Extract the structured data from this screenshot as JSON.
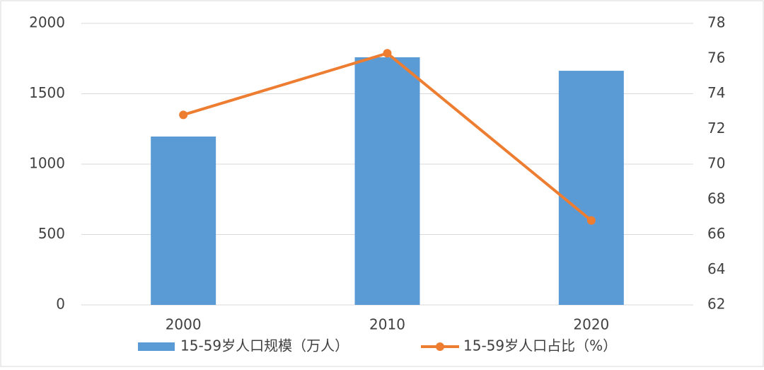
{
  "chart_data": {
    "type": "combo",
    "categories": [
      "2000",
      "2010",
      "2020"
    ],
    "series": [
      {
        "name": "15-59岁人口规模（万人）",
        "type": "bar",
        "color": "#5b9bd5",
        "values": [
          1196,
          1759,
          1663
        ]
      },
      {
        "name": "15-59岁人口占比（%）",
        "type": "line",
        "axis": "y2",
        "color": "#ed7d31",
        "values": [
          72.8,
          76.3,
          66.8
        ]
      }
    ],
    "ylim": [
      0,
      2000
    ],
    "yticks": [
      0,
      500,
      1000,
      1500,
      2000
    ],
    "y2lim": [
      62,
      78
    ],
    "y2ticks": [
      62,
      64,
      66,
      68,
      70,
      72,
      74,
      76,
      78
    ],
    "grid": true,
    "legend": "bottom"
  }
}
